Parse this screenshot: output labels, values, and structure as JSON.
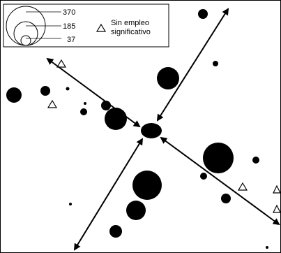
{
  "legend": {
    "size_labels": [
      "370",
      "185",
      "37"
    ],
    "marker_label_line1": "Sin empleo",
    "marker_label_line2": "significativo"
  },
  "map": {
    "map_kind": "proportional-symbol flow map",
    "circle_color": "#000000",
    "triangle_marker": "open-triangle",
    "arrow_style": "double-headed"
  }
}
